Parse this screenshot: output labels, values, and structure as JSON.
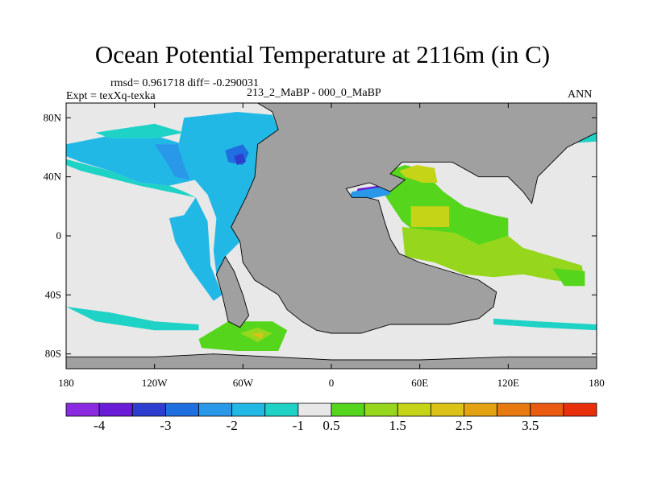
{
  "header": {
    "title": "Ocean Potential Temperature at 2116m (in C)",
    "stats": "rmsd= 0.961718 diff= -0.290031",
    "experiment": "Expt = texXq-texka",
    "case": "213_2_MaBP - 000_0_MaBP",
    "season": "ANN"
  },
  "chart_data": {
    "type": "heatmap",
    "title": "Ocean Potential Temperature at 2116m (in C)",
    "xlim": [
      -180,
      180
    ],
    "ylim": [
      -90,
      90
    ],
    "x_ticks": [
      {
        "value": -180,
        "label": "180"
      },
      {
        "value": -120,
        "label": "120W"
      },
      {
        "value": -60,
        "label": "60W"
      },
      {
        "value": 0,
        "label": "0"
      },
      {
        "value": 60,
        "label": "60E"
      },
      {
        "value": 120,
        "label": "120E"
      },
      {
        "value": 180,
        "label": "180"
      }
    ],
    "y_ticks": [
      {
        "value": 80,
        "label": "80N"
      },
      {
        "value": 40,
        "label": "40N"
      },
      {
        "value": 0,
        "label": "0"
      },
      {
        "value": -40,
        "label": "40S"
      },
      {
        "value": -80,
        "label": "80S"
      }
    ],
    "land_color": "#a0a0a0",
    "background_color": "#e8e8e8",
    "colorbar": {
      "colors": [
        "#8a2be2",
        "#6a1cd6",
        "#2e3ed0",
        "#1f6fe0",
        "#2a98e8",
        "#22b8e6",
        "#1fd2c6",
        "#e8e8e8",
        "#55d61c",
        "#96d61c",
        "#c6d418",
        "#dcc216",
        "#e2a212",
        "#e87810",
        "#ea5a10",
        "#e8300c"
      ],
      "labels": [
        {
          "index": 1,
          "text": "-4"
        },
        {
          "index": 3,
          "text": "-3"
        },
        {
          "index": 5,
          "text": "-2"
        },
        {
          "index": 7,
          "text": "-1"
        },
        {
          "index": 8,
          "text": "0.5"
        },
        {
          "index": 10,
          "text": "1.5"
        },
        {
          "index": 12,
          "text": "2.5"
        },
        {
          "index": 14,
          "text": "3.5"
        }
      ]
    },
    "regions": [
      {
        "name": "north-pacific",
        "color": "#22b8e6",
        "points": [
          [
            -180,
            62
          ],
          [
            -150,
            68
          ],
          [
            -120,
            68
          ],
          [
            -100,
            62
          ],
          [
            -96,
            46
          ],
          [
            -92,
            38
          ],
          [
            -110,
            34
          ],
          [
            -130,
            36
          ],
          [
            -150,
            44
          ],
          [
            -170,
            50
          ],
          [
            -180,
            54
          ]
        ]
      },
      {
        "name": "north-pacific-ne",
        "color": "#2a98e8",
        "points": [
          [
            -120,
            62
          ],
          [
            -104,
            62
          ],
          [
            -100,
            48
          ],
          [
            -96,
            38
          ],
          [
            -106,
            40
          ],
          [
            -112,
            50
          ]
        ]
      },
      {
        "name": "arctic-band",
        "color": "#1fd2c6",
        "points": [
          [
            -160,
            70
          ],
          [
            -120,
            76
          ],
          [
            -100,
            70
          ],
          [
            -120,
            66
          ],
          [
            -150,
            66
          ]
        ]
      },
      {
        "name": "central-pacific",
        "color": "#1fd2c6",
        "points": [
          [
            -180,
            52
          ],
          [
            -150,
            44
          ],
          [
            -130,
            36
          ],
          [
            -110,
            34
          ],
          [
            -100,
            30
          ],
          [
            -92,
            26
          ],
          [
            -130,
            34
          ],
          [
            -170,
            44
          ],
          [
            -180,
            48
          ]
        ]
      },
      {
        "name": "eastern-pacific-cold",
        "color": "#22b8e6",
        "points": [
          [
            -110,
            12
          ],
          [
            -100,
            14
          ],
          [
            -92,
            26
          ],
          [
            -84,
            10
          ],
          [
            -82,
            -20
          ],
          [
            -74,
            -40
          ],
          [
            -80,
            -44
          ],
          [
            -96,
            -22
          ],
          [
            -106,
            -4
          ]
        ]
      },
      {
        "name": "western-atlantic",
        "color": "#22b8e6",
        "points": [
          [
            -100,
            80
          ],
          [
            -64,
            84
          ],
          [
            -40,
            82
          ],
          [
            -36,
            72
          ],
          [
            -50,
            62
          ],
          [
            -52,
            40
          ],
          [
            -58,
            26
          ],
          [
            -68,
            6
          ],
          [
            -62,
            -4
          ],
          [
            -72,
            -14
          ],
          [
            -78,
            -26
          ],
          [
            -80,
            -10
          ],
          [
            -78,
            12
          ],
          [
            -84,
            28
          ],
          [
            -98,
            44
          ],
          [
            -104,
            60
          ]
        ]
      },
      {
        "name": "north-atlantic-cold",
        "color": "#1f6fe0",
        "points": [
          [
            -72,
            58
          ],
          [
            -60,
            62
          ],
          [
            -56,
            56
          ],
          [
            -60,
            48
          ],
          [
            -70,
            50
          ]
        ]
      },
      {
        "name": "north-atlantic-core",
        "color": "#2e3ed0",
        "points": [
          [
            -66,
            54
          ],
          [
            -60,
            56
          ],
          [
            -58,
            50
          ],
          [
            -64,
            48
          ]
        ]
      },
      {
        "name": "south-atlantic-warm",
        "color": "#55d61c",
        "points": [
          [
            -90,
            -70
          ],
          [
            -70,
            -58
          ],
          [
            -40,
            -58
          ],
          [
            -30,
            -64
          ],
          [
            -36,
            -78
          ],
          [
            -64,
            -78
          ],
          [
            -88,
            -76
          ]
        ]
      },
      {
        "name": "south-atlantic-warm2",
        "color": "#96d61c",
        "points": [
          [
            -62,
            -66
          ],
          [
            -50,
            -62
          ],
          [
            -40,
            -66
          ],
          [
            -50,
            -72
          ]
        ]
      },
      {
        "name": "south-atlantic-orange",
        "color": "#dcc216",
        "points": [
          [
            -54,
            -66
          ],
          [
            -46,
            -66
          ],
          [
            -48,
            -70
          ]
        ]
      },
      {
        "name": "tethys-green",
        "color": "#55d61c",
        "points": [
          [
            38,
            44
          ],
          [
            50,
            48
          ],
          [
            66,
            44
          ],
          [
            70,
            36
          ],
          [
            76,
            30
          ],
          [
            90,
            20
          ],
          [
            110,
            14
          ],
          [
            120,
            12
          ],
          [
            120,
            0
          ],
          [
            100,
            -10
          ],
          [
            84,
            -6
          ],
          [
            60,
            0
          ],
          [
            48,
            10
          ],
          [
            36,
            28
          ]
        ]
      },
      {
        "name": "tethys-yellow",
        "color": "#c6d418",
        "points": [
          [
            46,
            44
          ],
          [
            58,
            48
          ],
          [
            70,
            46
          ],
          [
            72,
            36
          ],
          [
            62,
            36
          ],
          [
            50,
            40
          ]
        ]
      },
      {
        "name": "indian-yellow",
        "color": "#c6d418",
        "points": [
          [
            54,
            20
          ],
          [
            80,
            20
          ],
          [
            80,
            6
          ],
          [
            54,
            6
          ]
        ]
      },
      {
        "name": "indian-ocean",
        "color": "#96d61c",
        "points": [
          [
            48,
            6
          ],
          [
            84,
            2
          ],
          [
            100,
            -6
          ],
          [
            120,
            0
          ],
          [
            130,
            -8
          ],
          [
            150,
            -14
          ],
          [
            170,
            -20
          ],
          [
            172,
            -32
          ],
          [
            150,
            -30
          ],
          [
            130,
            -26
          ],
          [
            110,
            -28
          ],
          [
            90,
            -26
          ],
          [
            70,
            -18
          ],
          [
            50,
            -14
          ]
        ]
      },
      {
        "name": "australia-east",
        "color": "#55d61c",
        "points": [
          [
            150,
            -22
          ],
          [
            172,
            -24
          ],
          [
            172,
            -34
          ],
          [
            158,
            -34
          ]
        ]
      },
      {
        "name": "mediterranean-cold",
        "color": "#6a1cd6",
        "points": [
          [
            18,
            32
          ],
          [
            32,
            34
          ],
          [
            38,
            30
          ],
          [
            26,
            26
          ],
          [
            16,
            28
          ]
        ]
      },
      {
        "name": "mediterranean-blue",
        "color": "#2a98e8",
        "points": [
          [
            14,
            30
          ],
          [
            40,
            34
          ],
          [
            40,
            28
          ],
          [
            20,
            24
          ],
          [
            12,
            26
          ]
        ]
      },
      {
        "name": "south-band-light",
        "color": "#1fd2c6",
        "points": [
          [
            -180,
            -48
          ],
          [
            -150,
            -52
          ],
          [
            -120,
            -58
          ],
          [
            -90,
            -60
          ],
          [
            -90,
            -64
          ],
          [
            -120,
            -64
          ],
          [
            -160,
            -58
          ]
        ]
      },
      {
        "name": "south-band-east",
        "color": "#1fd2c6",
        "points": [
          [
            110,
            -56
          ],
          [
            140,
            -58
          ],
          [
            180,
            -60
          ],
          [
            180,
            -64
          ],
          [
            140,
            -62
          ],
          [
            110,
            -60
          ]
        ]
      },
      {
        "name": "arctic-east",
        "color": "#1fd2c6",
        "points": [
          [
            100,
            66
          ],
          [
            130,
            72
          ],
          [
            160,
            74
          ],
          [
            180,
            72
          ],
          [
            180,
            64
          ],
          [
            150,
            62
          ],
          [
            120,
            60
          ]
        ]
      },
      {
        "name": "arctic-east-yellow",
        "color": "#55d61c",
        "points": [
          [
            122,
            80
          ],
          [
            142,
            82
          ],
          [
            150,
            78
          ],
          [
            128,
            76
          ]
        ]
      }
    ],
    "land": [
      {
        "name": "north-america-eurasia-africa",
        "points": [
          [
            -50,
            90
          ],
          [
            -40,
            84
          ],
          [
            -36,
            72
          ],
          [
            -50,
            62
          ],
          [
            -52,
            40
          ],
          [
            -58,
            26
          ],
          [
            -68,
            6
          ],
          [
            -62,
            -4
          ],
          [
            -60,
            -18
          ],
          [
            -52,
            -30
          ],
          [
            -36,
            -40
          ],
          [
            -30,
            -50
          ],
          [
            -20,
            -58
          ],
          [
            -10,
            -64
          ],
          [
            0,
            -66
          ],
          [
            20,
            -66
          ],
          [
            40,
            -60
          ],
          [
            60,
            -60
          ],
          [
            80,
            -60
          ],
          [
            100,
            -56
          ],
          [
            110,
            -48
          ],
          [
            112,
            -38
          ],
          [
            100,
            -30
          ],
          [
            80,
            -24
          ],
          [
            60,
            -18
          ],
          [
            46,
            -12
          ],
          [
            40,
            -2
          ],
          [
            36,
            10
          ],
          [
            32,
            24
          ],
          [
            24,
            26
          ],
          [
            14,
            26
          ],
          [
            10,
            32
          ],
          [
            26,
            36
          ],
          [
            40,
            30
          ],
          [
            50,
            38
          ],
          [
            40,
            42
          ],
          [
            48,
            50
          ],
          [
            70,
            50
          ],
          [
            82,
            50
          ],
          [
            100,
            40
          ],
          [
            120,
            40
          ],
          [
            130,
            30
          ],
          [
            136,
            22
          ],
          [
            140,
            40
          ],
          [
            150,
            50
          ],
          [
            160,
            60
          ],
          [
            180,
            70
          ],
          [
            180,
            90
          ]
        ]
      },
      {
        "name": "antarctica-shelf",
        "points": [
          [
            -180,
            -82
          ],
          [
            -120,
            -82
          ],
          [
            -80,
            -80
          ],
          [
            -40,
            -82
          ],
          [
            0,
            -84
          ],
          [
            60,
            -84
          ],
          [
            120,
            -82
          ],
          [
            180,
            -82
          ],
          [
            180,
            -90
          ],
          [
            -180,
            -90
          ]
        ]
      },
      {
        "name": "south-america-west",
        "points": [
          [
            -78,
            -26
          ],
          [
            -74,
            -40
          ],
          [
            -70,
            -58
          ],
          [
            -62,
            -62
          ],
          [
            -56,
            -54
          ],
          [
            -60,
            -40
          ],
          [
            -66,
            -24
          ],
          [
            -72,
            -14
          ]
        ]
      }
    ]
  }
}
